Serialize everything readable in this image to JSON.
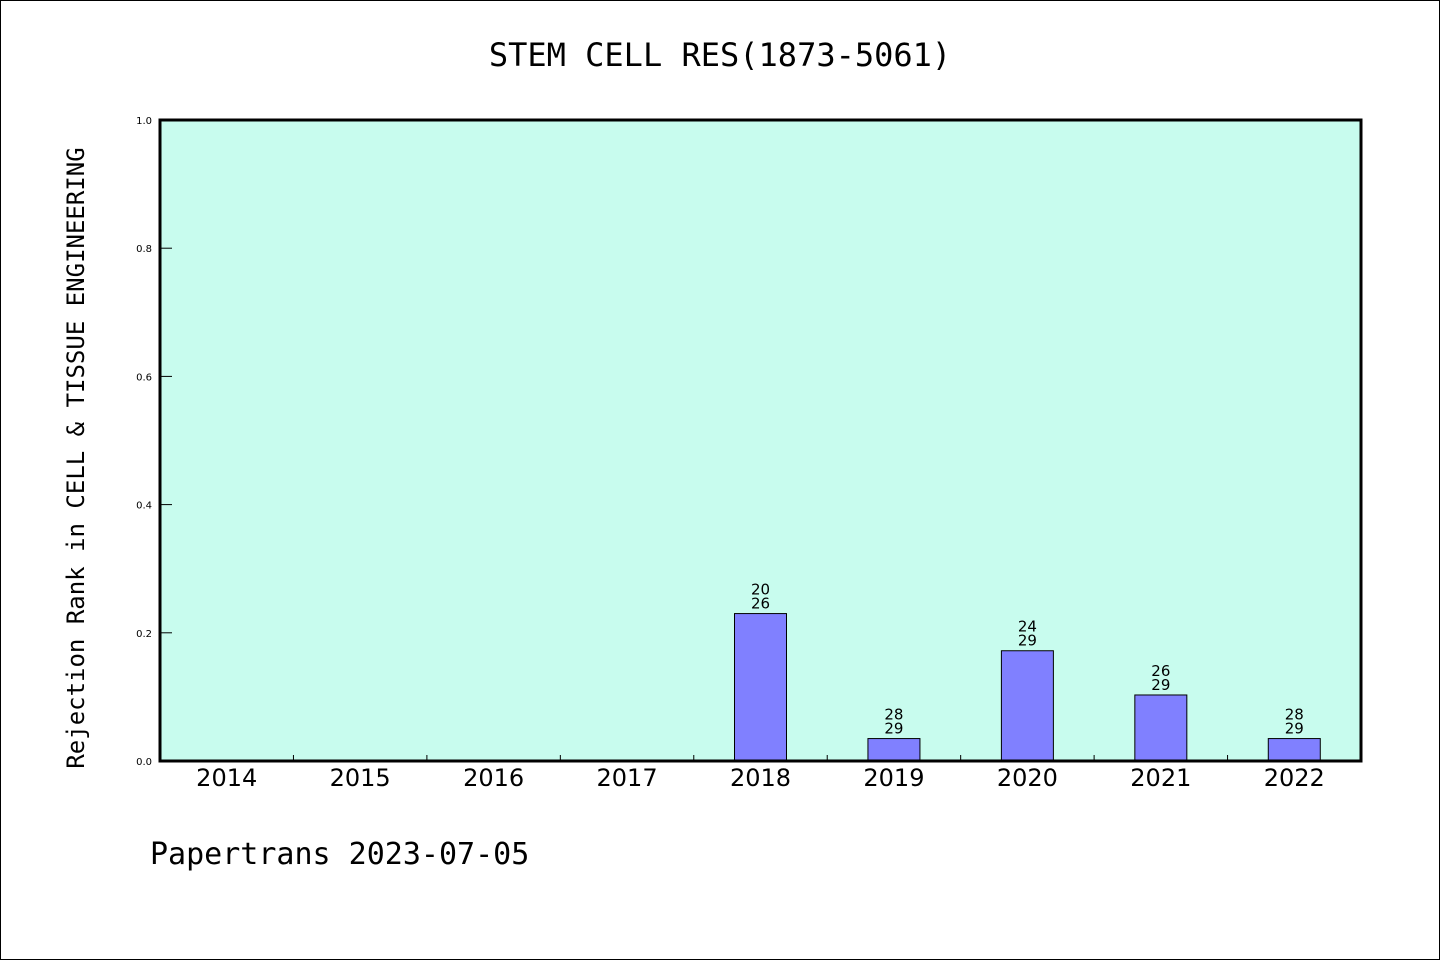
{
  "chart_data": {
    "type": "bar",
    "title": "STEM CELL RES(1873-5061)",
    "ylabel": "Rejection Rank in CELL & TISSUE ENGINEERING",
    "xlabel": "",
    "categories": [
      "2014",
      "2015",
      "2016",
      "2017",
      "2018",
      "2019",
      "2020",
      "2021",
      "2022"
    ],
    "values": [
      0,
      0,
      0,
      0,
      0.23,
      0.035,
      0.172,
      0.103,
      0.035
    ],
    "bar_labels": [
      null,
      null,
      null,
      null,
      {
        "top": "20",
        "bottom": "26"
      },
      {
        "top": "28",
        "bottom": "29"
      },
      {
        "top": "24",
        "bottom": "29"
      },
      {
        "top": "26",
        "bottom": "29"
      },
      {
        "top": "28",
        "bottom": "29"
      }
    ],
    "ylim": [
      0,
      1.0
    ],
    "yticks": [
      "0.0",
      "0.2",
      "0.4",
      "0.6",
      "0.8",
      "1.0"
    ],
    "grid": false,
    "colors": {
      "plot_background": "#c8fcee",
      "bar_fill": "#8080ff",
      "bar_stroke": "#000000"
    }
  },
  "footer": "Papertrans 2023-07-05"
}
